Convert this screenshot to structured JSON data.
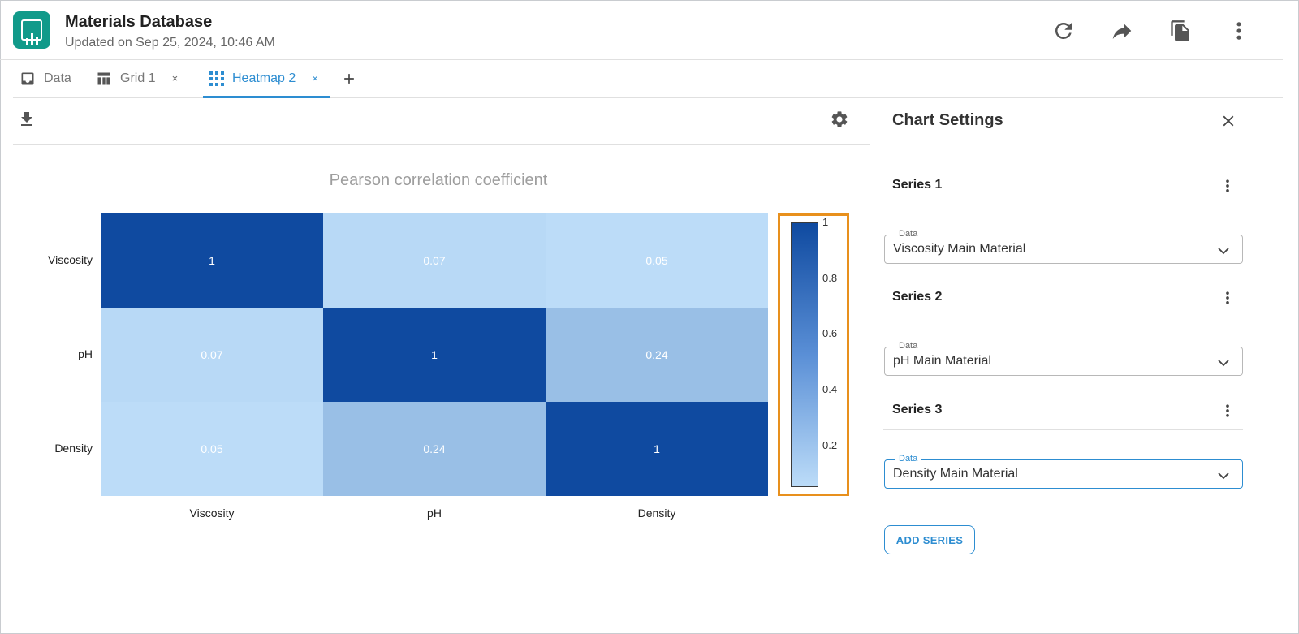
{
  "header": {
    "title": "Materials Database",
    "subtitle": "Updated on Sep 25, 2024, 10:46 AM"
  },
  "tabs": [
    {
      "label": "Data",
      "icon": "inbox-icon",
      "closable": false
    },
    {
      "label": "Grid 1",
      "icon": "table-icon",
      "closable": true,
      "close": "×"
    },
    {
      "label": "Heatmap 2",
      "icon": "grid-dots-icon",
      "closable": true,
      "close": "×",
      "active": true
    }
  ],
  "chart_data": {
    "type": "heatmap",
    "title": "Pearson correlation coefficient",
    "x_labels": [
      "Viscosity",
      "pH",
      "Density"
    ],
    "y_labels": [
      "Viscosity",
      "pH",
      "Density"
    ],
    "values": [
      [
        1,
        0.07,
        0.05
      ],
      [
        0.07,
        1,
        0.24
      ],
      [
        0.05,
        0.24,
        1
      ]
    ],
    "value_labels": [
      [
        "1",
        "0.07",
        "0.05"
      ],
      [
        "0.07",
        "1",
        "0.24"
      ],
      [
        "0.05",
        "0.24",
        "1"
      ]
    ],
    "colorbar": {
      "ticks": [
        "1",
        "0.8",
        "0.6",
        "0.4",
        "0.2"
      ],
      "tick_values": [
        1,
        0.8,
        0.6,
        0.4,
        0.2
      ],
      "range": [
        0.05,
        1
      ],
      "highlighted": true
    },
    "colors": {
      "low": "#bcdcf8",
      "high": "#0f4aa0",
      "highlight": "#e8901d"
    }
  },
  "settings": {
    "title": "Chart Settings",
    "series": [
      {
        "label": "Series 1",
        "field_label": "Data",
        "value": "Viscosity Main Material"
      },
      {
        "label": "Series 2",
        "field_label": "Data",
        "value": "pH Main Material"
      },
      {
        "label": "Series 3",
        "field_label": "Data",
        "value": "Density Main Material"
      }
    ],
    "add_series": "ADD SERIES"
  },
  "colors": {
    "accent": "#2d8dd1",
    "brand": "#119a8a"
  }
}
